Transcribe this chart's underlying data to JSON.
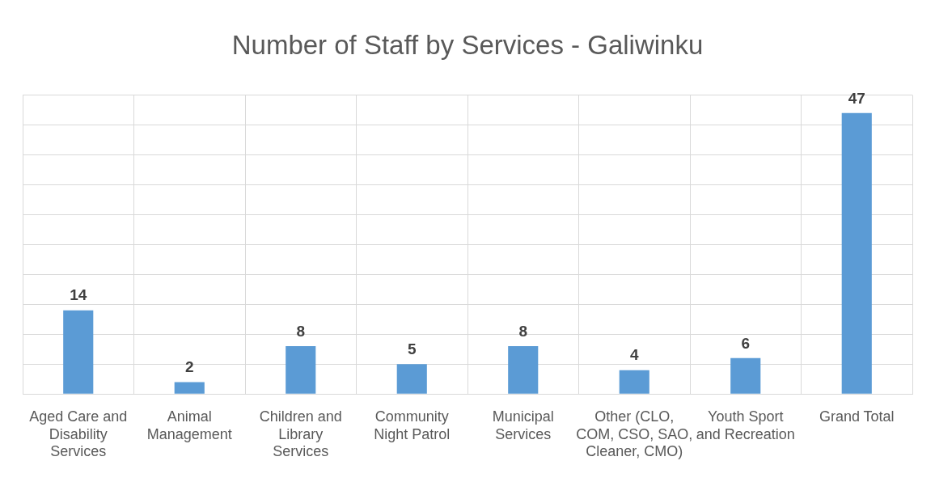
{
  "chart_data": {
    "type": "bar",
    "title": "Number of Staff by Services - Galiwinku",
    "categories": [
      "Aged Care and Disability Services",
      "Animal Management",
      "Children and Library Services",
      "Community Night Patrol",
      "Municipal Services",
      "Other (CLO, COM, CSO, SAO, Cleaner, CMO)",
      "Youth Sport and Recreation",
      "Grand Total"
    ],
    "values": [
      14,
      2,
      8,
      5,
      8,
      4,
      6,
      47
    ],
    "color": "#5b9bd5",
    "ylim": [
      0,
      50
    ],
    "yticks": [
      {
        "value": 0,
        "label": null
      },
      {
        "value": 5,
        "label": null
      },
      {
        "value": 10,
        "label": null
      },
      {
        "value": 15,
        "label": null
      },
      {
        "value": 20,
        "label": null
      },
      {
        "value": 25,
        "label": null
      },
      {
        "value": 30,
        "label": null
      },
      {
        "value": 35,
        "label": null
      },
      {
        "value": 40,
        "label": null
      },
      {
        "value": 45,
        "label": null
      },
      {
        "value": 50,
        "label": null
      }
    ],
    "tick_labels": "x",
    "grid": true,
    "legend": false,
    "data_labels": true
  }
}
